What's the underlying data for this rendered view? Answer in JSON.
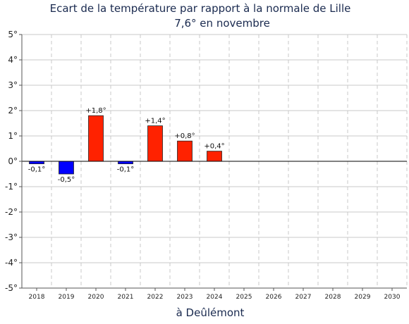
{
  "chart_data": {
    "type": "bar",
    "title": "Ecart de la température par rapport à la normale de Lille",
    "subtitle": "7,6° en novembre",
    "xlabel": "à Deûlémont",
    "ylabel": "",
    "categories": [
      "2018",
      "2019",
      "2020",
      "2021",
      "2022",
      "2023",
      "2024",
      "2025",
      "2026",
      "2027",
      "2028",
      "2029",
      "2030"
    ],
    "values": [
      -0.1,
      -0.5,
      1.8,
      -0.1,
      1.4,
      0.8,
      0.4,
      null,
      null,
      null,
      null,
      null,
      null
    ],
    "data_labels": [
      "-0,1°",
      "-0,5°",
      "+1,8°",
      "-0,1°",
      "+1,4°",
      "+0,8°",
      "+0,4°",
      "",
      "",
      "",
      "",
      "",
      ""
    ],
    "ylim": [
      -5,
      5
    ],
    "yticks": [
      5,
      4,
      3,
      2,
      1,
      0,
      -1,
      -2,
      -3,
      -4,
      -5
    ],
    "ytick_labels": [
      "5°",
      "4°",
      "3°",
      "2°",
      "1°",
      "0°",
      "-1°",
      "-2°",
      "-3°",
      "-4°",
      "-5°"
    ],
    "grid": true,
    "colors": {
      "positive": "#ff2200",
      "negative": "#0000ff",
      "zero_line": "#000000",
      "grid": "#c8c8c8"
    }
  }
}
